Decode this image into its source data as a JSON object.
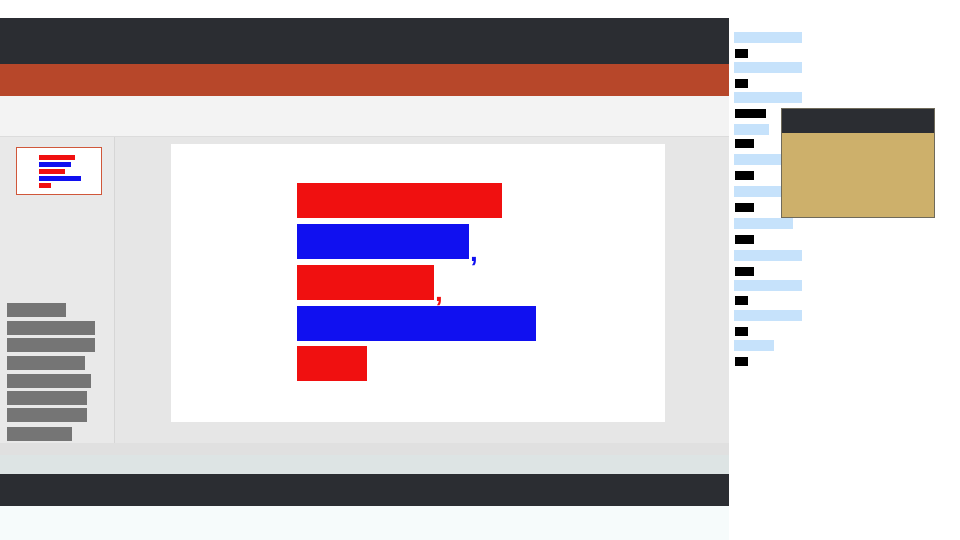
{
  "app": {
    "accent_color": "#b7472a",
    "chrome_color": "#2b2d32",
    "slide_thumbnail": {
      "bars": [
        {
          "color": "#f01010"
        },
        {
          "color": "#1010f0"
        },
        {
          "color": "#f01010"
        },
        {
          "color": "#1010f0"
        },
        {
          "color": "#f01010"
        }
      ]
    },
    "slide": {
      "bars": [
        {
          "color": "#f01010"
        },
        {
          "color": "#1010f0",
          "suffix": ","
        },
        {
          "color": "#f01010",
          "suffix": ","
        },
        {
          "color": "#1010f0"
        },
        {
          "color": "#f01010"
        }
      ]
    },
    "outline_labels": [
      "",
      "",
      "",
      "",
      "",
      "",
      "",
      ""
    ]
  },
  "side_panel": {
    "row_color": "#c6e2fb",
    "tag_color": "#000000"
  },
  "popup": {
    "title": "",
    "body_color": "#cdb06b"
  }
}
